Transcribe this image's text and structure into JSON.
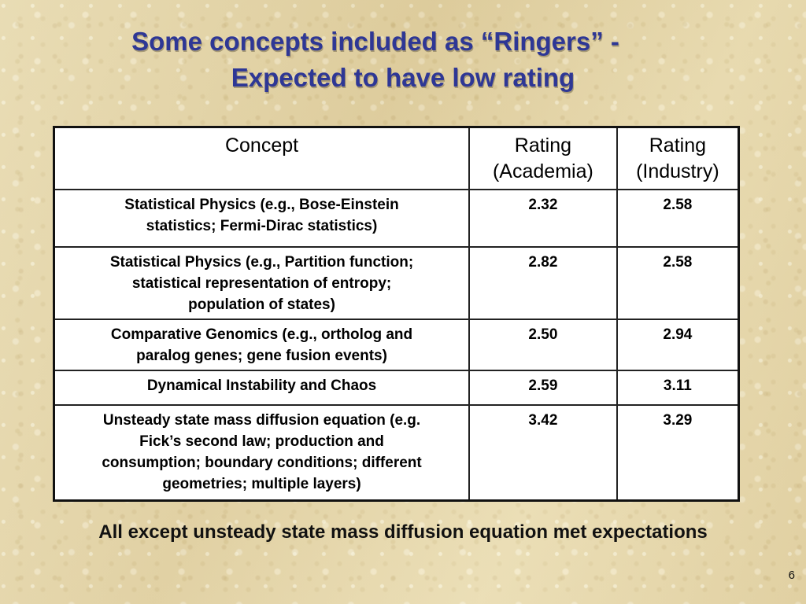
{
  "slide": {
    "title_line1": "Some concepts included as “Ringers” -",
    "title_line2": "Expected to have low rating",
    "page_number": "6"
  },
  "table": {
    "headers": {
      "concept": "Concept",
      "academia_line1": "Rating",
      "academia_line2": "(Academia)",
      "industry_line1": "Rating",
      "industry_line2": "(Industry)"
    },
    "rows": [
      {
        "concept": [
          "Statistical Physics (e.g., Bose-Einstein",
          "statistics; Fermi-Dirac statistics)"
        ],
        "academia": "2.32",
        "industry": "2.58"
      },
      {
        "concept": [
          "Statistical Physics (e.g., Partition function;",
          "statistical representation of entropy;",
          "population of states)"
        ],
        "academia": "2.82",
        "industry": "2.58"
      },
      {
        "concept": [
          "Comparative Genomics (e.g., ortholog and",
          "paralog genes; gene fusion events)"
        ],
        "academia": "2.50",
        "industry": "2.94"
      },
      {
        "concept": [
          "Dynamical Instability and Chaos"
        ],
        "academia": "2.59",
        "industry": "3.11"
      },
      {
        "concept": [
          "Unsteady state mass diffusion equation  (e.g.",
          "Fick’s second law; production and",
          "consumption; boundary conditions; different",
          "geometries; multiple layers)"
        ],
        "academia": "3.42",
        "industry": "3.29"
      }
    ]
  },
  "footer": {
    "note": "All except unsteady state mass diffusion equation met expectations"
  },
  "colors": {
    "title": "#2e3795",
    "background": "#e6d7a9",
    "table_background": "#ffffff",
    "border": "#111111"
  }
}
